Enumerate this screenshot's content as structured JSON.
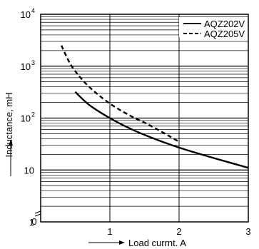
{
  "chart_data": {
    "type": "line",
    "title": "",
    "xlabel": "Load currnt. A",
    "ylabel": "Inductance, mH",
    "xlim": [
      0,
      3
    ],
    "ylim": [
      1,
      10000
    ],
    "y_scale": "log",
    "grid": true,
    "legend_position": "top-right",
    "x_ticks": [
      {
        "value": 0,
        "label": "0"
      },
      {
        "value": 1,
        "label": "1"
      },
      {
        "value": 2,
        "label": "2"
      },
      {
        "value": 3,
        "label": "3"
      }
    ],
    "y_ticks": [
      {
        "value": 1,
        "base": "1",
        "exp": ""
      },
      {
        "value": 10,
        "base": "10",
        "exp": ""
      },
      {
        "value": 100,
        "base": "10",
        "exp": "2"
      },
      {
        "value": 1000,
        "base": "10",
        "exp": "3"
      },
      {
        "value": 10000,
        "base": "10",
        "exp": "4"
      }
    ],
    "series": [
      {
        "name": "AQZ202V",
        "style": "solid",
        "x": [
          0.5,
          0.7,
          1.0,
          1.3,
          1.6,
          2.0,
          2.5,
          3.0
        ],
        "y": [
          320,
          180,
          100,
          62,
          42,
          27,
          17,
          11
        ]
      },
      {
        "name": "AQZ205V",
        "style": "dashed",
        "x": [
          0.3,
          0.4,
          0.5,
          0.7,
          1.0,
          1.3,
          1.6,
          2.0
        ],
        "y": [
          2500,
          1300,
          800,
          400,
          190,
          110,
          70,
          35
        ]
      }
    ]
  }
}
